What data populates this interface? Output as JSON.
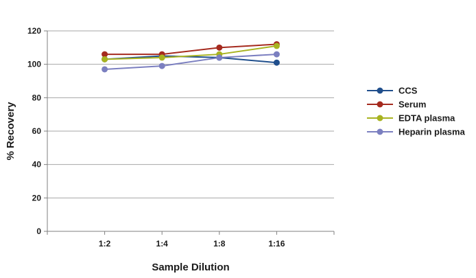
{
  "chart_data": {
    "type": "line",
    "title": "",
    "xlabel": "Sample Dilution",
    "ylabel": "% Recovery",
    "categories": [
      "1:2",
      "1:4",
      "1:8",
      "1:16"
    ],
    "ylim": [
      0,
      120
    ],
    "yticks": [
      0,
      20,
      40,
      60,
      80,
      100,
      120
    ],
    "grid": true,
    "legend_position": "right",
    "series": [
      {
        "name": "CCS",
        "color": "#1f4e8c",
        "values": [
          103,
          105,
          104,
          101
        ]
      },
      {
        "name": "Serum",
        "color": "#a52a1e",
        "values": [
          106,
          106,
          110,
          112
        ]
      },
      {
        "name": "EDTA plasma",
        "color": "#a8b320",
        "values": [
          103,
          104,
          106,
          111
        ]
      },
      {
        "name": "Heparin plasma",
        "color": "#7b7fc0",
        "values": [
          97,
          99,
          104,
          106
        ]
      }
    ]
  }
}
